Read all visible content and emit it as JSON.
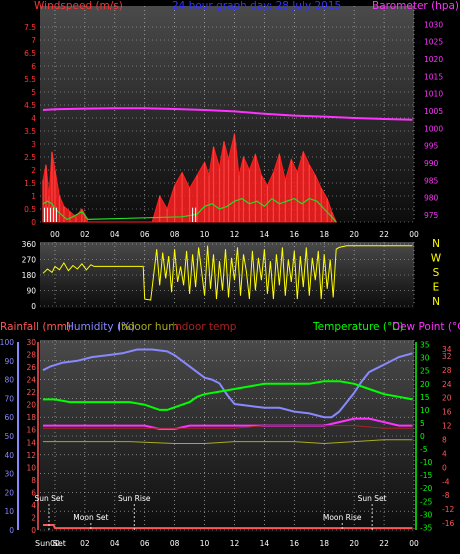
{
  "header": {
    "wind_title": "Windspeed (m/s)",
    "graph_title": "24 hour graph day: 28 July 2015",
    "baro_title": "Barometer (hpa)"
  },
  "colors": {
    "background": "#000000",
    "plot_bg_top": "#4a4a4a",
    "plot_bg_bottom": "#101010",
    "grid": "#bbbbbb",
    "wind_title": "#ff3333",
    "graph_title": "#3333ff",
    "baro": "#ff33ff",
    "wind_avg": "#ff2020",
    "wind_gust": "#ffffff",
    "wind_green": "#22dd22",
    "wind_dir": "#ffff00",
    "rain": "#ff5555",
    "humidity": "#8888ff",
    "indoor_hum": "#aaaa22",
    "indoor_temp": "#aa2222",
    "temperature": "#00ff00",
    "dew": "#ff33ff",
    "axis_left_wind": "#ff3333",
    "axis_left_rain": "#ff5555",
    "axis_humidity": "#8888ff",
    "axis_temp": "#00ff00",
    "axis_dew": "#ff5555",
    "white": "#ffffff"
  },
  "x_axis": {
    "tick_labels": [
      "00",
      "02",
      "04",
      "06",
      "08",
      "10",
      "12",
      "14",
      "16",
      "18",
      "20",
      "22",
      "00"
    ]
  },
  "chart_data": [
    {
      "type": "line",
      "panel": "wind_baro",
      "x_unit": "hours",
      "xlim": [
        -1,
        24
      ],
      "left_axis": {
        "ticks": [
          "0",
          "0.5",
          "1",
          "1.5",
          "2",
          "2.5",
          "3",
          "3.5",
          "4",
          "4.5",
          "5",
          "5.5",
          "6",
          "6.5",
          "7",
          "7.5"
        ],
        "ylim": [
          0,
          8
        ]
      },
      "right_axis": {
        "ticks": [
          "975",
          "980",
          "985",
          "990",
          "995",
          "1000",
          "1005",
          "1010",
          "1015",
          "1020",
          "1025",
          "1030"
        ],
        "ylim": [
          973,
          1033
        ]
      },
      "series": [
        {
          "name": "Barometer (hpa)",
          "axis": "right",
          "x": [
            -0.8,
            0,
            2,
            4,
            6,
            8,
            10,
            12,
            14,
            16,
            18,
            20,
            22,
            23.9
          ],
          "y": [
            1005.3,
            1005.5,
            1005.7,
            1005.8,
            1005.8,
            1005.6,
            1005.3,
            1004.9,
            1004.2,
            1003.7,
            1003.4,
            1003.0,
            1002.7,
            1002.5
          ]
        },
        {
          "name": "Windspeed (m/s)",
          "axis": "left",
          "x": [
            -0.8,
            -0.6,
            -0.4,
            -0.2,
            0,
            0.3,
            0.6,
            1.0,
            1.4,
            1.8,
            2.0,
            2.2,
            6.5,
            7.0,
            7.5,
            8.0,
            8.5,
            9.0,
            9.5,
            10.0,
            10.3,
            10.6,
            11.0,
            11.3,
            11.6,
            12.0,
            12.3,
            12.6,
            13.0,
            13.4,
            13.8,
            14.2,
            14.6,
            15.0,
            15.4,
            15.8,
            16.2,
            16.6,
            17.0,
            17.4,
            17.8,
            18.2,
            18.5,
            18.8
          ],
          "y": [
            1.6,
            2.2,
            1.0,
            2.7,
            2.0,
            1.0,
            0.6,
            0.4,
            0.2,
            0.5,
            0.3,
            0,
            0,
            1.0,
            0.5,
            1.4,
            1.9,
            1.3,
            1.8,
            2.3,
            1.8,
            2.9,
            2.1,
            3.1,
            2.4,
            3.4,
            1.8,
            2.5,
            2.0,
            2.6,
            1.8,
            1.4,
            1.9,
            2.6,
            1.6,
            2.4,
            1.9,
            2.7,
            2.2,
            1.8,
            1.3,
            0.9,
            0.4,
            0
          ]
        },
        {
          "name": "",
          "axis": "left",
          "x": [
            -0.8,
            -0.5,
            -0.2,
            0,
            0.4,
            0.8,
            1.2,
            1.8,
            2.2,
            8.5,
            9.5,
            10.0,
            10.5,
            11.0,
            11.5,
            12.0,
            12.5,
            13.0,
            13.5,
            14.0,
            14.5,
            15.0,
            15.5,
            16.0,
            16.5,
            17.0,
            17.5,
            18.0,
            18.5,
            18.8
          ],
          "y": [
            0.7,
            0.8,
            0.7,
            0.5,
            0.3,
            0.1,
            0.2,
            0.4,
            0.1,
            0.2,
            0.3,
            0.6,
            0.7,
            0.5,
            0.6,
            0.8,
            0.9,
            0.7,
            0.8,
            0.6,
            0.9,
            0.7,
            0.8,
            0.9,
            0.7,
            0.9,
            0.8,
            0.5,
            0.2,
            0
          ]
        }
      ]
    },
    {
      "type": "scatter",
      "panel": "wind_direction",
      "xlim": [
        -1,
        24
      ],
      "left_axis": {
        "ticks": [
          "0",
          "90",
          "180",
          "270",
          "360"
        ],
        "ylim": [
          0,
          360
        ]
      },
      "right_labels": [
        "N",
        "W",
        "S",
        "E",
        "N"
      ],
      "series": [
        {
          "name": "",
          "x": [
            -0.8,
            -0.5,
            -0.2,
            0,
            0.3,
            0.6,
            0.9,
            1.2,
            1.5,
            1.8,
            2.1,
            2.4,
            2.6,
            3,
            4,
            5,
            5.9,
            6.0,
            6.4,
            6.8,
            7.0,
            7.2,
            7.4,
            7.6,
            7.8,
            8.0,
            8.2,
            8.4,
            8.6,
            8.8,
            9.0,
            9.2,
            9.4,
            9.6,
            9.8,
            10.0,
            10.2,
            10.4,
            10.6,
            10.8,
            11.0,
            11.2,
            11.4,
            11.6,
            11.8,
            12.0,
            12.2,
            12.4,
            12.6,
            12.8,
            13.0,
            13.2,
            13.4,
            13.6,
            13.8,
            14.0,
            14.2,
            14.4,
            14.6,
            14.8,
            15.0,
            15.2,
            15.4,
            15.6,
            15.8,
            16.0,
            16.2,
            16.4,
            16.6,
            16.8,
            17.0,
            17.2,
            17.4,
            17.6,
            17.8,
            18.0,
            18.2,
            18.4,
            18.6,
            18.8,
            19.0,
            19.5,
            20,
            22,
            23.9
          ],
          "y": [
            190,
            215,
            195,
            230,
            210,
            250,
            205,
            235,
            215,
            245,
            210,
            240,
            230,
            230,
            230,
            230,
            230,
            40,
            35,
            330,
            120,
            310,
            160,
            290,
            80,
            330,
            140,
            230,
            120,
            320,
            70,
            300,
            110,
            340,
            200,
            60,
            350,
            100,
            300,
            40,
            260,
            90,
            330,
            50,
            280,
            150,
            340,
            60,
            300,
            200,
            40,
            320,
            90,
            280,
            150,
            330,
            70,
            260,
            40,
            300,
            120,
            340,
            60,
            270,
            140,
            320,
            40,
            290,
            110,
            340,
            60,
            280,
            150,
            320,
            40,
            300,
            100,
            270,
            50,
            330,
            340,
            350,
            350,
            350,
            350
          ]
        }
      ]
    },
    {
      "type": "line",
      "panel": "temp_humidity",
      "xlim": [
        -1,
        24
      ],
      "left_rain_axis": {
        "title": "Rainfall (mm)",
        "ticks": [
          "0",
          "2",
          "4",
          "6",
          "8",
          "10",
          "12",
          "14",
          "16",
          "18",
          "20",
          "22",
          "24",
          "26",
          "28",
          "30"
        ],
        "ylim": [
          0,
          30
        ]
      },
      "left_humidity_axis": {
        "title": "Humidity (%)",
        "ticks": [
          "0",
          "10",
          "20",
          "30",
          "40",
          "50",
          "60",
          "70",
          "80",
          "90",
          "100"
        ],
        "ylim": [
          0,
          100
        ]
      },
      "indoor_labels": {
        "hum": "Indoor hum",
        "temp": "Indoor temp"
      },
      "right_temp_axis": {
        "title": "Temperature (°C)",
        "ticks": [
          "-35",
          "-30",
          "-25",
          "-20",
          "-15",
          "-10",
          "-5",
          "0",
          "5",
          "10",
          "15",
          "20",
          "25",
          "30",
          "35"
        ],
        "ylim": [
          -36,
          36
        ]
      },
      "right_dew_axis": {
        "title": "Dew Point (°C)",
        "ticks": [
          "-16",
          "-12",
          "-8",
          "-4",
          "0",
          "4",
          "8",
          "12",
          "16",
          "20",
          "24",
          "28",
          "32",
          "34"
        ],
        "ylim": [
          -18,
          36
        ]
      },
      "sun_moon": [
        {
          "label": "Sun Set",
          "x": -0.4,
          "level": 1
        },
        {
          "label": "Moon Set",
          "x": 2.4,
          "level": 2
        },
        {
          "label": "Sun Rise",
          "x": 5.3,
          "level": 1
        },
        {
          "label": "Moon Rise",
          "x": 19.2,
          "level": 2
        },
        {
          "label": "Sun Set",
          "x": 21.2,
          "level": 1
        }
      ],
      "bottom_label": "Sun Set",
      "series": [
        {
          "name": "Humidity (%)",
          "axis": "humidity",
          "x": [
            -0.8,
            -0.3,
            0.5,
            1.5,
            2.5,
            3.5,
            4.5,
            5.5,
            6.5,
            7.5,
            8.0,
            8.5,
            9.0,
            9.5,
            10.0,
            10.5,
            11.0,
            11.5,
            12.0,
            13.0,
            14.0,
            15.0,
            16.0,
            17.0,
            18.0,
            18.5,
            19.0,
            19.5,
            20.0,
            20.5,
            21.0,
            22.0,
            23.0,
            23.9
          ],
          "y": [
            85,
            87,
            89,
            90,
            92,
            93,
            94,
            96,
            96,
            95,
            93,
            90,
            87,
            84,
            81,
            80,
            78,
            72,
            67,
            66,
            65,
            65,
            63,
            62,
            60,
            60,
            63,
            68,
            73,
            79,
            84,
            88,
            92,
            94
          ]
        },
        {
          "name": "Temperature (°C)",
          "axis": "temp",
          "x": [
            -0.8,
            0,
            1,
            2,
            3,
            4,
            5,
            6,
            7,
            7.5,
            8,
            8.5,
            9,
            9.5,
            10,
            11,
            12,
            13,
            14,
            15,
            16,
            17,
            18,
            19,
            20,
            21,
            22,
            23,
            23.9
          ],
          "y": [
            14,
            14,
            13,
            13,
            13,
            13,
            13,
            12,
            10,
            10,
            11,
            12,
            13,
            15,
            16,
            17,
            18,
            19,
            20,
            20,
            20,
            20,
            21,
            21,
            20,
            18,
            16,
            15,
            14
          ]
        },
        {
          "name": "Dew Point (°C)",
          "axis": "dew",
          "x": [
            -0.8,
            0,
            2,
            4,
            6,
            7,
            8,
            9,
            10,
            11,
            12,
            14,
            16,
            18,
            19,
            20,
            21,
            22,
            23,
            23.9
          ],
          "y": [
            12,
            12,
            12,
            12,
            12,
            11,
            11,
            12,
            12,
            12,
            12,
            12,
            12,
            12,
            13,
            14,
            14,
            13,
            12,
            12
          ]
        },
        {
          "name": "Indoor hum",
          "axis": "humidity",
          "x": [
            -0.8,
            2,
            5,
            8,
            10,
            12,
            14,
            16,
            18,
            20,
            22,
            23.9
          ],
          "y": [
            47,
            47,
            47,
            46,
            46,
            47,
            47,
            47,
            46,
            47,
            48,
            48
          ]
        },
        {
          "name": "Indoor temp",
          "axis": "temp",
          "x": [
            -0.8,
            2,
            5,
            8,
            10,
            12,
            14,
            16,
            18,
            20,
            22,
            23.9
          ],
          "y": [
            3,
            3,
            3,
            3,
            3,
            3,
            4,
            4,
            4,
            4,
            3,
            3
          ]
        },
        {
          "name": "Rainfall (mm)",
          "axis": "rain",
          "x": [
            -0.8,
            -0.1,
            0,
            23.9
          ],
          "y": [
            0.8,
            0.8,
            0.3,
            0.3
          ]
        }
      ]
    }
  ]
}
